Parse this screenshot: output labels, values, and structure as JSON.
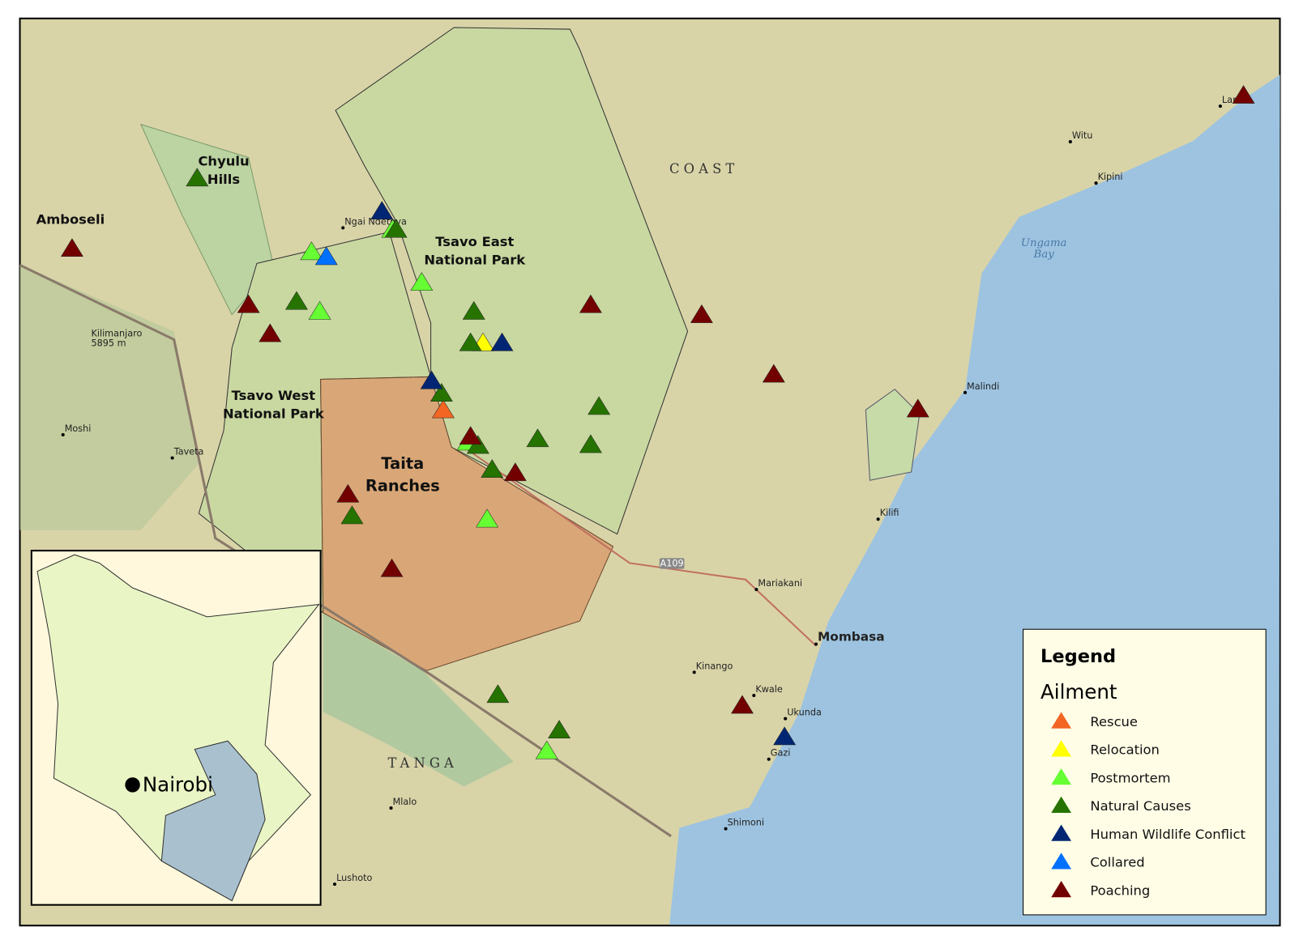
{
  "map": {
    "parks": [
      {
        "lines": [
          "Amboseli"
        ]
      },
      {
        "lines": [
          "Chyulu",
          "Hills"
        ]
      },
      {
        "lines": [
          "Tsavo East",
          "National Park"
        ]
      },
      {
        "lines": [
          "Tsavo West",
          "National Park"
        ]
      },
      {
        "lines": [
          "Taita",
          "Ranches"
        ]
      }
    ],
    "regions": [
      "COAST",
      "TANGA"
    ],
    "water": {
      "lines": [
        "Ungama",
        "Bay"
      ]
    },
    "peak": {
      "lines": [
        "Kilimanjaro",
        "5895 m"
      ]
    },
    "towns": [
      "Moshi",
      "Taveta",
      "Malindi",
      "Kilifi",
      "Mariakani",
      "Kinango",
      "Kwale",
      "Ukunda",
      "Gazi",
      "Shimoni",
      "Mlalo",
      "Lushoto",
      "Witu",
      "Kipini",
      "Lamu",
      "Ngai Ndethya",
      "Mombasa"
    ],
    "road": "A109",
    "inset": {
      "label": "Nairobi"
    }
  },
  "legend": {
    "title": "Legend",
    "subtitle": "Ailment",
    "items": [
      {
        "name": "Rescue",
        "color": "#f26522"
      },
      {
        "name": "Relocation",
        "color": "#ffff00"
      },
      {
        "name": "Postmortem",
        "color": "#66ff33"
      },
      {
        "name": "Natural Causes",
        "color": "#267300"
      },
      {
        "name": "Human Wildlife Conflict",
        "color": "#002673"
      },
      {
        "name": "Collared",
        "color": "#0070ff"
      },
      {
        "name": "Poaching",
        "color": "#730000"
      }
    ]
  }
}
